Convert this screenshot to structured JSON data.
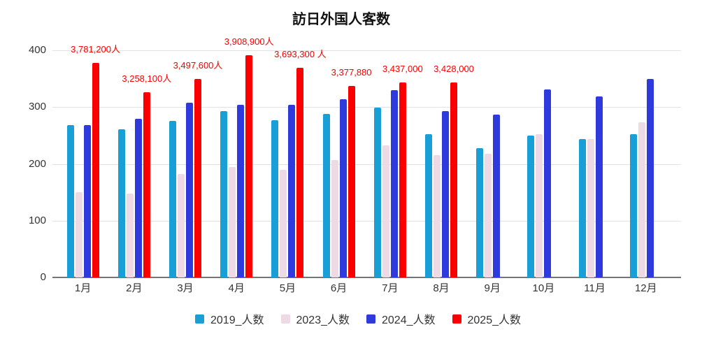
{
  "chart_data": {
    "type": "bar",
    "title": "訪日外国人客数",
    "categories": [
      "1月",
      "2月",
      "3月",
      "4月",
      "5月",
      "6月",
      "7月",
      "8月",
      "9月",
      "10月",
      "11月",
      "12月"
    ],
    "yticks": [
      0,
      100,
      200,
      300,
      400
    ],
    "ylim": [
      0,
      400
    ],
    "grid": true,
    "legend_position": "bottom",
    "series": [
      {
        "name": "2019_人数",
        "color": "#18a0d6",
        "values": [
          268.9,
          260.4,
          276.0,
          292.7,
          277.3,
          288.0,
          299.1,
          252.0,
          227.3,
          249.7,
          244.1,
          252.6
        ]
      },
      {
        "name": "2023_人数",
        "color": "#eedae4",
        "values": [
          149.7,
          147.5,
          181.8,
          194.9,
          189.9,
          207.3,
          232.1,
          215.7,
          218.4,
          251.7,
          244.1,
          273.4
        ]
      },
      {
        "name": "2024_人数",
        "color": "#2f3adc",
        "values": [
          268.8,
          278.8,
          308.2,
          304.3,
          304.0,
          313.6,
          329.3,
          293.3,
          287.2,
          331.2,
          318.7,
          349.0
        ]
      },
      {
        "name": "2025_人数",
        "color": "#fb0000",
        "values": [
          378.1,
          325.8,
          349.8,
          390.9,
          369.3,
          337.8,
          343.7,
          342.8,
          null,
          null,
          null,
          null
        ],
        "annotations": [
          "3,781,200人",
          "3,258,100人",
          "3,497,600人",
          "3,908,900人",
          "3,693,300 人",
          "3,377,880",
          "3,437,000",
          "3,428,000",
          null,
          null,
          null,
          null
        ]
      }
    ]
  },
  "colors": {
    "gridline": "#e2e2e2",
    "axis_line": "#757575",
    "tick_text": "#333333",
    "annotation_text": "#fb0000"
  }
}
